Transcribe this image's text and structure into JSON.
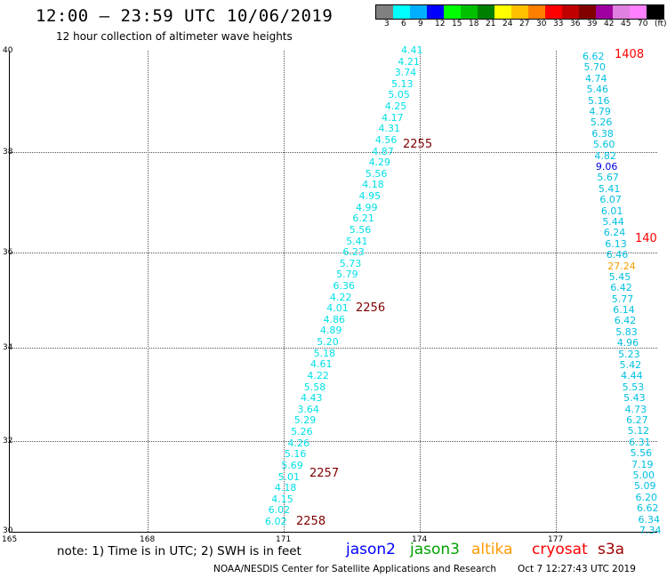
{
  "header": {
    "title": "12:00 – 23:59 UTC 10/06/2019",
    "subtitle": "12 hour collection of altimeter wave heights"
  },
  "legend": {
    "labels": [
      "3",
      "6",
      "9",
      "12",
      "15",
      "18",
      "21",
      "24",
      "27",
      "30",
      "33",
      "36",
      "39",
      "42",
      "45",
      "70",
      "(ft)"
    ],
    "colors": [
      "#808080",
      "#00ffff",
      "#00b0ff",
      "#0000ff",
      "#00ff00",
      "#00c000",
      "#008000",
      "#ffff00",
      "#ffc000",
      "#ff8000",
      "#ff0000",
      "#c00000",
      "#800000",
      "#a000a0",
      "#e080e0",
      "#ff80ff",
      "#000000"
    ]
  },
  "axes": {
    "x_ticks": [
      "165",
      "168",
      "171",
      "174",
      "177"
    ],
    "y_ticks": [
      "30",
      "32",
      "34",
      "36",
      "38",
      "40"
    ]
  },
  "tracks": [
    {
      "name": "track-left",
      "color": "#00e0e8",
      "values": [
        "4.41",
        "4.21",
        "3.74",
        "5.13",
        "5.05",
        "4.25",
        "4.17",
        "4.31",
        "4.56",
        "4.87",
        "4.29",
        "5.56",
        "4.18",
        "4.95",
        "4.99",
        "6.21",
        "5.56",
        "5.41",
        "6.23",
        "5.73",
        "5.79",
        "6.36",
        "4.22",
        "4.01",
        "4.86",
        "4.89",
        "5.20",
        "5.18",
        "4.61",
        "4.22",
        "5.58",
        "4.43",
        "3.64",
        "5.29",
        "5.26",
        "4.26",
        "5.16",
        "5.69",
        "5.01",
        "4.18",
        "4.15",
        "6.02",
        "6.02"
      ]
    },
    {
      "name": "track-right",
      "color": "#00c0e0",
      "values": [
        "6.62",
        "5.70",
        "4.74",
        "5.46",
        "5.16",
        "4.79",
        "5.26",
        "6.38",
        "5.60",
        "4.82",
        "9.06",
        "5.67",
        "5.41",
        "6.07",
        "6.01",
        "5.44",
        "6.24",
        "6.13",
        "6.46",
        "27.24",
        "5.45",
        "6.42",
        "5.77",
        "6.14",
        "6.42",
        "5.83",
        "4.96",
        "5.23",
        "5.42",
        "4.44",
        "5.53",
        "5.43",
        "4.73",
        "6.27",
        "5.12",
        "6.31",
        "5.56",
        "7.19",
        "5.00",
        "5.09",
        "6.20",
        "6.62",
        "6.34",
        "7.34"
      ],
      "special_colors": {
        "10": "#0000e0",
        "19": "#f0a000"
      }
    }
  ],
  "time_labels": {
    "t2255": "2255",
    "t2256": "2256",
    "t2257": "2257",
    "t2258": "2258",
    "t1408": "1408",
    "t140": "140"
  },
  "footer": {
    "note": "note: 1) Time is in UTC; 2) SWH is in feet",
    "satellites": [
      {
        "name": "jason2",
        "color": "#0000ff"
      },
      {
        "name": "jason3",
        "color": "#00a000"
      },
      {
        "name": "altika",
        "color": "#ff9900"
      },
      {
        "name": "cryosat",
        "color": "#ff0000"
      },
      {
        "name": "s3a",
        "color": "#a00000"
      }
    ],
    "credit": "NOAA/NESDIS Center for Satellite Applications and Research",
    "date": "Oct  7 12:27:43 UTC 2019"
  }
}
